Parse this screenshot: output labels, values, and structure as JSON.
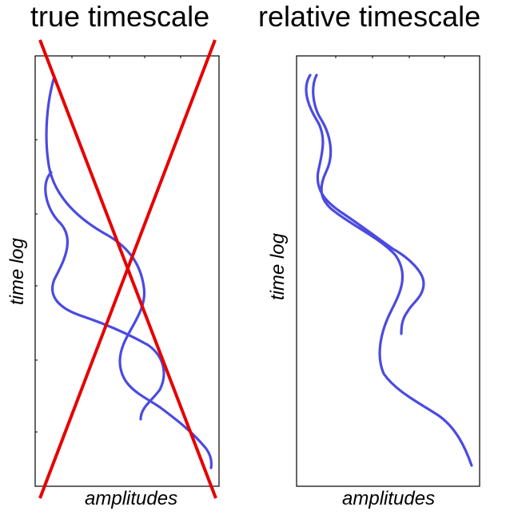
{
  "panels": [
    {
      "title": "true timescale",
      "ylabel": "time log",
      "xlabel": "amplitudes",
      "crossed_out": true
    },
    {
      "title": "relative timescale",
      "ylabel": "time log",
      "xlabel": "amplitudes",
      "crossed_out": false
    }
  ],
  "colors": {
    "curve": "#4b4be0",
    "cross": "#e60000",
    "frame": "#000000",
    "text": "#000000"
  }
}
